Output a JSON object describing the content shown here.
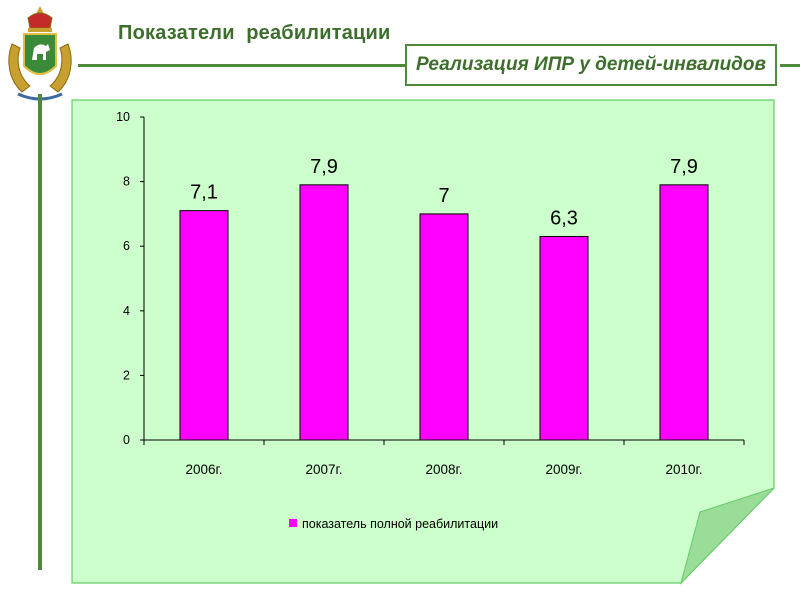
{
  "header": {
    "title": "Показатели  реабилитации"
  },
  "subtitle": "Реализация ИПР у детей-инвалидов",
  "colors": {
    "accent_green": "#4f8a3a",
    "paper": "#ccffcc",
    "bar": "#ff00ff"
  },
  "icons": {
    "crest": "coat-of-arms-icon"
  },
  "chart_data": {
    "type": "bar",
    "categories": [
      "2006г.",
      "2007г.",
      "2008г.",
      "2009г.",
      "2010г."
    ],
    "series": [
      {
        "name": "показатель полной реабилитации",
        "values": [
          7.1,
          7.9,
          7,
          6.3,
          7.9
        ]
      }
    ],
    "data_labels": [
      "7,1",
      "7,9",
      "7",
      "6,3",
      "7,9"
    ],
    "yticks": [
      "0",
      "2",
      "4",
      "6",
      "8",
      "10"
    ],
    "ylim": [
      0,
      10
    ],
    "legend_position": "bottom",
    "grid": false
  }
}
